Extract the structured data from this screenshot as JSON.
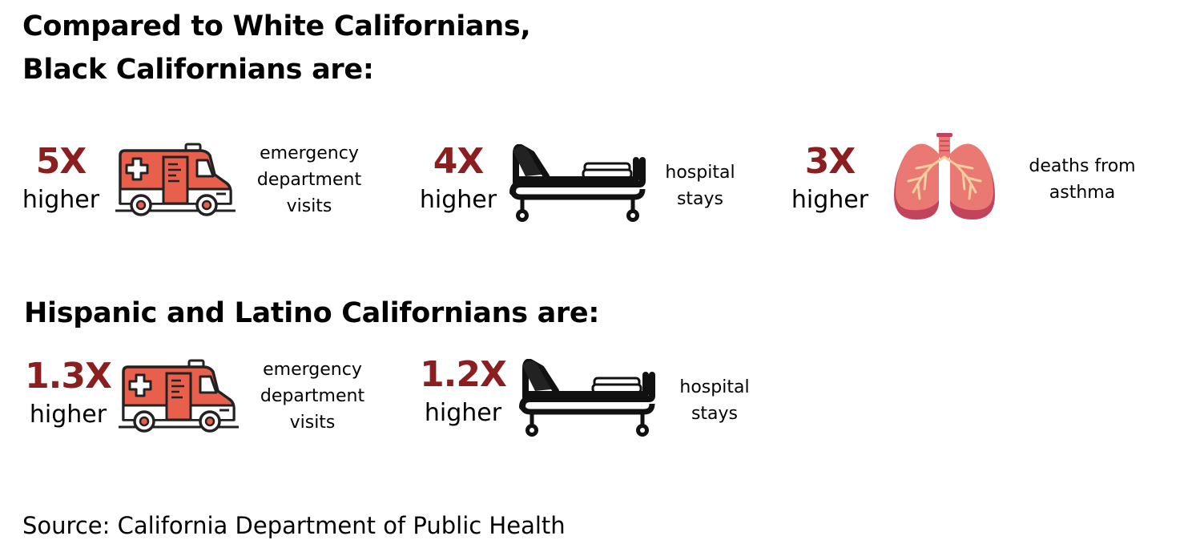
{
  "heading1": {
    "line1": "Compared to White Californians,",
    "line2": "Black Californians are:"
  },
  "heading2": "Hispanic and Latino Californians are:",
  "black_stats": [
    {
      "multiplier": "5X",
      "qualifier": "higher",
      "icon": "ambulance-icon",
      "label_lines": [
        "emergency",
        "department",
        "visits"
      ]
    },
    {
      "multiplier": "4X",
      "qualifier": "higher",
      "icon": "hospital-bed-icon",
      "label_lines": [
        "hospital",
        "stays"
      ]
    },
    {
      "multiplier": "3X",
      "qualifier": "higher",
      "icon": "lungs-icon",
      "label_lines": [
        "deaths from",
        "asthma"
      ]
    }
  ],
  "hispanic_stats": [
    {
      "multiplier": "1.3X",
      "qualifier": "higher",
      "icon": "ambulance-icon",
      "label_lines": [
        "emergency",
        "department",
        "visits"
      ]
    },
    {
      "multiplier": "1.2X",
      "qualifier": "higher",
      "icon": "hospital-bed-icon",
      "label_lines": [
        "hospital",
        "stays"
      ]
    }
  ],
  "source": "Source: California Department of Public Health",
  "colors": {
    "multiplier": "#8b1e1e",
    "ambulance_accent": "#e8604c",
    "lungs": "#ea7873",
    "lungs_dark": "#c3425c",
    "airways": "#f3cf9e"
  }
}
